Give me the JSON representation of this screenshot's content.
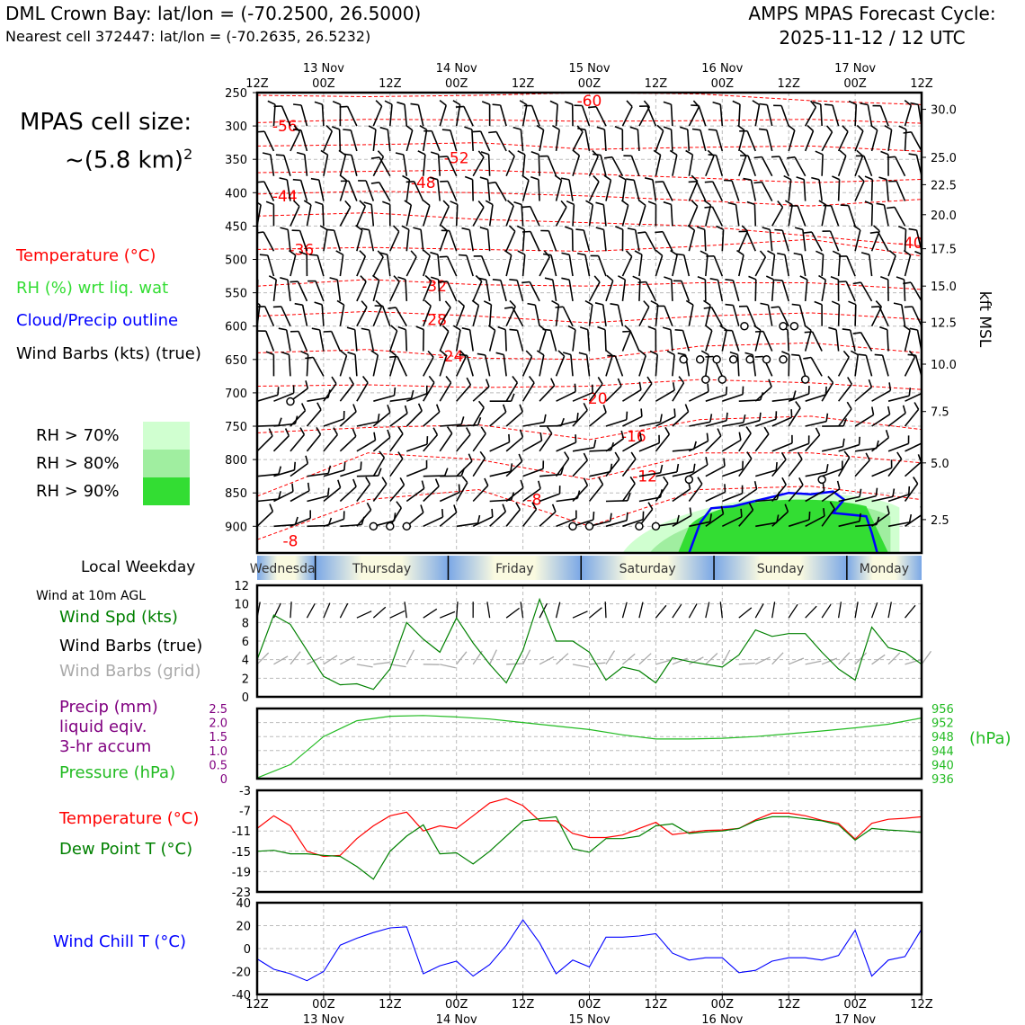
{
  "header": {
    "station_line": "DML Crown Bay: lat/lon = (-70.2500, 26.5000)",
    "cell_line": "Nearest cell 372447: lat/lon = (-70.2635, 26.5232)",
    "cycle_line1": "AMPS MPAS Forecast Cycle:",
    "cycle_line2": "2025-11-12 / 12 UTC"
  },
  "left_panel": {
    "cell_size_line1": "MPAS cell size:",
    "cell_size_line2": "~(5.8 km)",
    "cell_size_exp": "2",
    "legend": {
      "temperature": "Temperature (°C)",
      "rh": "RH (%) wrt liq. wat",
      "cloud": "Cloud/Precip outline",
      "barbs": "Wind Barbs (kts) (true)"
    },
    "rh_levels": [
      "RH > 70%",
      "RH > 80%",
      "RH > 90%"
    ]
  },
  "colors": {
    "temperature": "#ff0000",
    "rh": "#33dd33",
    "cloud": "#0000ff",
    "rh70": "#d0ffd0",
    "rh80": "#a0eea0",
    "rh90": "#33dd33",
    "wind_spd": "#008000",
    "grid_barbs": "#aaaaaa",
    "precip": "#800080",
    "pressure": "#22bb22",
    "dewpoint": "#008000",
    "windchill": "#0000ff",
    "day_band_light": "#fafae0",
    "day_band_dark": "#7aa7e6"
  },
  "lower_legend": {
    "wind_at": "Wind at 10m AGL",
    "wind_spd": "Wind Spd (kts)",
    "wind_barbs_true": "Wind Barbs (true)",
    "wind_barbs_grid": "Wind Barbs (grid)",
    "precip1": "Precip (mm)",
    "precip2": "liquid eqiv.",
    "precip3": "3-hr accum",
    "pressure": "Pressure (hPa)",
    "temp": "Temperature (°C)",
    "dew": "Dew Point T (°C)",
    "windchill": "Wind Chill T (°C)",
    "local_weekday": "Local Weekday"
  },
  "chart_data": [
    {
      "type": "cross-section",
      "name": "upper-air time-height",
      "xlabel_ticks": [
        "12Z",
        "00Z",
        "12Z",
        "00Z",
        "12Z",
        "00Z",
        "12Z",
        "00Z",
        "12Z",
        "00Z",
        "12Z"
      ],
      "date_labels": [
        "13 Nov",
        "14 Nov",
        "15 Nov",
        "16 Nov",
        "17 Nov"
      ],
      "x_hours": [
        0,
        120
      ],
      "pressure_ticks": [
        250,
        300,
        350,
        400,
        450,
        500,
        550,
        600,
        650,
        700,
        750,
        800,
        850,
        900
      ],
      "ylim": [
        250,
        940
      ],
      "right_axis_label": "kft MSL",
      "kft_ticks": [
        {
          "label": "30.0",
          "p": 275
        },
        {
          "label": "25.0",
          "p": 347
        },
        {
          "label": "22.5",
          "p": 388
        },
        {
          "label": "20.0",
          "p": 433
        },
        {
          "label": "17.5",
          "p": 484
        },
        {
          "label": "15.0",
          "p": 540
        },
        {
          "label": "12.5",
          "p": 594
        },
        {
          "label": "10.0",
          "p": 657
        },
        {
          "label": "7.5",
          "p": 728
        },
        {
          "label": "5.0",
          "p": 805
        },
        {
          "label": "2.5",
          "p": 890
        }
      ],
      "temperature_isotherms": [
        {
          "label": "-60",
          "p": [
            254,
            256,
            254,
            250,
            252,
            262,
            268
          ]
        },
        {
          "label": "-56",
          "p": [
            295,
            290,
            291,
            293,
            292,
            290,
            296
          ]
        },
        {
          "label": "-52",
          "p": [
            330,
            328,
            325,
            335,
            332,
            330,
            338
          ]
        },
        {
          "label": "-48",
          "p": [
            370,
            368,
            366,
            372,
            378,
            385,
            380
          ]
        },
        {
          "label": "-44",
          "p": [
            402,
            398,
            400,
            405,
            412,
            420,
            410
          ]
        },
        {
          "label": "-40",
          "p": [
            435,
            430,
            440,
            445,
            450,
            465,
            480
          ]
        },
        {
          "label": "-36",
          "p": [
            485,
            482,
            485,
            488,
            480,
            470,
            495
          ]
        },
        {
          "label": "-32",
          "p": [
            540,
            530,
            538,
            540,
            535,
            535,
            545
          ]
        },
        {
          "label": "-28",
          "p": [
            585,
            578,
            585,
            595,
            585,
            580,
            590
          ]
        },
        {
          "label": "-24",
          "p": [
            640,
            635,
            648,
            650,
            630,
            625,
            640
          ]
        },
        {
          "label": "-20",
          "p": [
            690,
            688,
            692,
            690,
            680,
            685,
            695
          ]
        },
        {
          "label": "-16",
          "p": [
            760,
            752,
            748,
            770,
            740,
            735,
            755
          ]
        },
        {
          "label": "-12",
          "p": [
            855,
            790,
            800,
            830,
            790,
            790,
            805
          ]
        },
        {
          "label": "-8",
          "p": [
            920,
            860,
            845,
            900,
            845,
            840,
            860
          ]
        }
      ],
      "temperature_labels": [
        {
          "text": "-60",
          "t": 60,
          "p": 262
        },
        {
          "text": "-56",
          "t": 5,
          "p": 300
        },
        {
          "text": "-52",
          "t": 36,
          "p": 348
        },
        {
          "text": "-48",
          "t": 30,
          "p": 385
        },
        {
          "text": "-44",
          "t": 5,
          "p": 405
        },
        {
          "text": "-40",
          "t": 118,
          "p": 475
        },
        {
          "text": "-36",
          "t": 8,
          "p": 485
        },
        {
          "text": "-32",
          "t": 32,
          "p": 540
        },
        {
          "text": "-28",
          "t": 32,
          "p": 590
        },
        {
          "text": "-24",
          "t": 35,
          "p": 645
        },
        {
          "text": "-20",
          "t": 61,
          "p": 708
        },
        {
          "text": "-16",
          "t": 68,
          "p": 765
        },
        {
          "text": "-12",
          "t": 70,
          "p": 825
        },
        {
          "text": "-8",
          "t": 50,
          "p": 860
        },
        {
          "text": "-8",
          "t": 6,
          "p": 922
        }
      ],
      "rh_area": {
        "t_start": 66,
        "t_end": 116,
        "p_top": 845,
        "p_bottom": 940
      },
      "cloud_outline": {
        "t_start": 78,
        "t_end": 112,
        "p_top": 848,
        "p_bottom": 940
      }
    },
    {
      "type": "line",
      "name": "10m wind speed",
      "x_hours": [
        0,
        3,
        6,
        9,
        12,
        15,
        18,
        21,
        24,
        27,
        30,
        33,
        36,
        39,
        42,
        45,
        48,
        51,
        54,
        57,
        60,
        63,
        66,
        69,
        72,
        75,
        78,
        81,
        84,
        87,
        90,
        93,
        96,
        99,
        102,
        105,
        108,
        111,
        114,
        117,
        120
      ],
      "values": [
        4.0,
        8.8,
        7.8,
        5.0,
        2.2,
        1.3,
        1.4,
        0.8,
        3.0,
        8.0,
        6.2,
        4.8,
        8.5,
        5.8,
        3.5,
        1.5,
        5.0,
        10.5,
        6.0,
        6.0,
        4.8,
        1.8,
        3.2,
        2.8,
        1.5,
        4.2,
        3.8,
        3.5,
        3.2,
        4.5,
        7.2,
        6.5,
        6.8,
        6.8,
        4.8,
        3.0,
        1.8,
        7.5,
        5.3,
        4.8,
        3.5
      ],
      "ylim": [
        0,
        12
      ],
      "yticks": [
        0,
        2,
        4,
        6,
        8,
        10,
        12
      ]
    },
    {
      "type": "line",
      "name": "precip and pressure",
      "left_ticks": [
        "0",
        "0.5",
        "1.0",
        "1.5",
        "2.0",
        "2.5"
      ],
      "right_ticks": [
        "936",
        "940",
        "944",
        "948",
        "952",
        "956"
      ],
      "right_label": "(hPa)",
      "x_hours": [
        0,
        6,
        12,
        18,
        24,
        30,
        36,
        42,
        48,
        54,
        60,
        66,
        72,
        78,
        84,
        90,
        96,
        102,
        108,
        114,
        120
      ],
      "pressure": [
        936.2,
        940,
        948,
        952.5,
        953.8,
        954,
        953.6,
        953,
        952,
        951,
        950,
        948.5,
        947.3,
        947.3,
        947.5,
        948,
        948.8,
        949.6,
        950.5,
        951.5,
        953.3
      ],
      "precip": [
        0,
        0,
        0,
        0,
        0,
        0,
        0,
        0,
        0,
        0,
        0,
        0,
        0,
        0,
        0,
        0,
        0,
        0,
        0,
        0,
        0
      ],
      "ylim_precip": [
        0,
        2.5
      ],
      "ylim_pressure": [
        936,
        956
      ]
    },
    {
      "type": "line",
      "name": "temperature and dew point",
      "yticks": [
        -23,
        -19,
        -15,
        -11,
        -7,
        -3
      ],
      "ylim": [
        -23,
        -3
      ],
      "x_hours": [
        0,
        3,
        6,
        9,
        12,
        15,
        18,
        21,
        24,
        27,
        30,
        33,
        36,
        39,
        42,
        45,
        48,
        51,
        54,
        57,
        60,
        63,
        66,
        69,
        72,
        75,
        78,
        81,
        84,
        87,
        90,
        93,
        96,
        99,
        102,
        105,
        108,
        111,
        114,
        117,
        120
      ],
      "series": [
        {
          "name": "Temperature",
          "values": [
            -10.5,
            -8.0,
            -10.0,
            -15.0,
            -16.0,
            -15.8,
            -12.5,
            -10.0,
            -8.0,
            -7.3,
            -11.0,
            -10.0,
            -10.5,
            -8.0,
            -5.5,
            -4.6,
            -6.0,
            -9.0,
            -9.0,
            -11.5,
            -12.3,
            -12.3,
            -11.8,
            -10.5,
            -9.3,
            -11.7,
            -11.3,
            -10.9,
            -10.8,
            -10.5,
            -8.8,
            -7.5,
            -7.5,
            -8.0,
            -8.9,
            -9.5,
            -12.6,
            -9.5,
            -8.7,
            -8.5,
            -8.2
          ]
        },
        {
          "name": "Dew Point",
          "values": [
            -15.0,
            -14.8,
            -15.5,
            -15.5,
            -15.8,
            -16.0,
            -18.0,
            -20.5,
            -15.0,
            -12.0,
            -9.8,
            -15.5,
            -15.3,
            -17.5,
            -15.0,
            -12.0,
            -9.0,
            -8.6,
            -8.2,
            -14.5,
            -15.2,
            -12.5,
            -12.5,
            -12.0,
            -10.0,
            -9.6,
            -11.5,
            -11.2,
            -11.0,
            -10.5,
            -9.0,
            -8.2,
            -8.2,
            -8.6,
            -9.0,
            -9.8,
            -12.8,
            -10.5,
            -10.8,
            -11.0,
            -11.3
          ]
        }
      ]
    },
    {
      "type": "line",
      "name": "wind chill",
      "yticks": [
        -40,
        -20,
        0,
        20,
        40
      ],
      "ylim": [
        -40,
        40
      ],
      "x_hours": [
        0,
        3,
        6,
        9,
        12,
        15,
        18,
        21,
        24,
        27,
        30,
        33,
        36,
        39,
        42,
        45,
        48,
        51,
        54,
        57,
        60,
        63,
        66,
        69,
        72,
        75,
        78,
        81,
        84,
        87,
        90,
        93,
        96,
        99,
        102,
        105,
        108,
        111,
        114,
        117,
        120
      ],
      "values": [
        -9,
        -18,
        -22,
        -28,
        -20,
        3,
        9,
        14,
        18,
        19,
        -22,
        -15,
        -11,
        -24,
        -14,
        3,
        25,
        5,
        -22,
        -10,
        -16,
        10,
        10,
        11,
        13,
        -4,
        -10,
        -8,
        -8,
        -21,
        -19,
        -11,
        -8,
        -8,
        -10,
        -6,
        16,
        -24,
        -10,
        -7,
        17
      ]
    }
  ],
  "weekday_band": {
    "days": [
      "Wednesday",
      "Thursday",
      "Friday",
      "Saturday",
      "Sunday",
      "Monday"
    ]
  }
}
